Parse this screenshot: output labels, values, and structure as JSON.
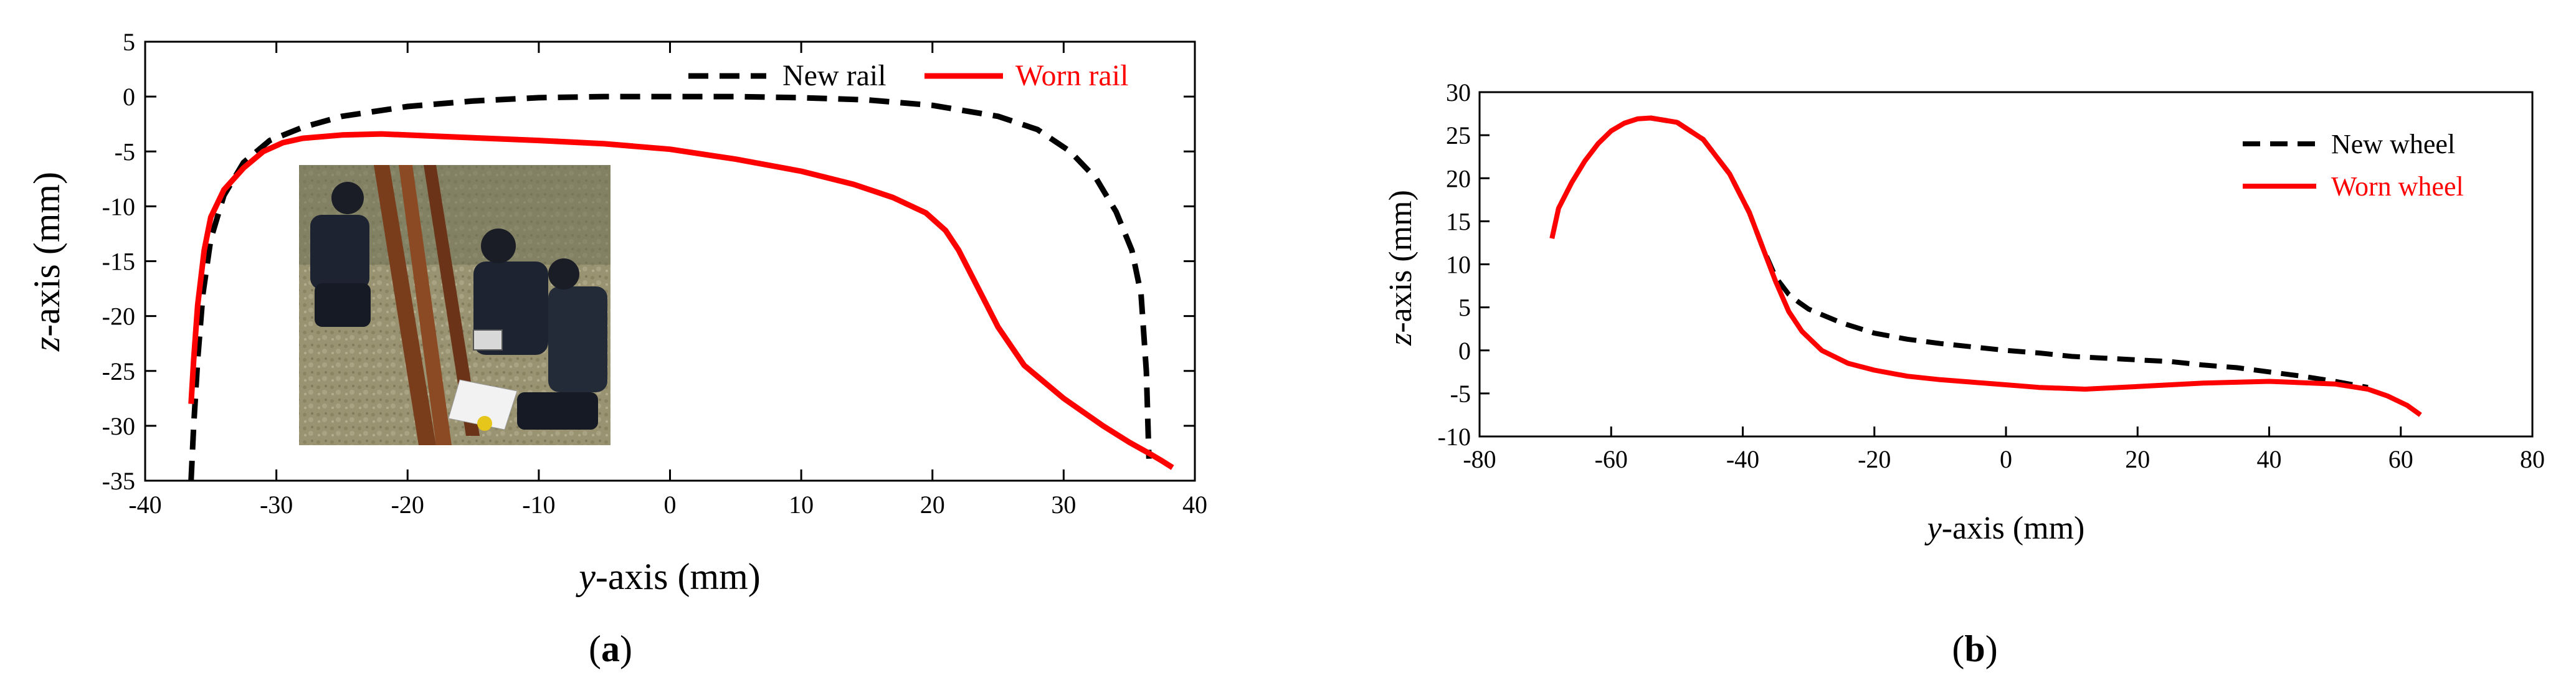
{
  "chart_data": [
    {
      "panel": "a",
      "type": "line",
      "panel_label": {
        "open": "(",
        "letter": "a",
        "close": ")"
      },
      "xaxis_label": {
        "italic": "y",
        "rest": "-axis (mm)"
      },
      "yaxis_label": {
        "italic": "z",
        "rest": "-axis (mm)"
      },
      "xlim": [
        -40,
        40
      ],
      "ylim": [
        -35,
        5
      ],
      "xticks": [
        -40,
        -30,
        -20,
        -10,
        0,
        10,
        20,
        30,
        40
      ],
      "yticks": [
        5,
        0,
        -5,
        -10,
        -15,
        -20,
        -25,
        -30,
        -35
      ],
      "legend_position": "top-right",
      "inset_photo": "photo of workers measuring rail profile",
      "series": [
        {
          "name": "New rail",
          "style": "dashed",
          "color": "#000000",
          "x": [
            -36.5,
            -36.3,
            -36.0,
            -35.6,
            -35.0,
            -34.0,
            -32.5,
            -30.5,
            -28.0,
            -25.0,
            -20.0,
            -15.0,
            -10.0,
            -5.0,
            0.0,
            5.0,
            10.0,
            15.0,
            20.0,
            25.0,
            28.0,
            30.5,
            32.5,
            34.0,
            35.2,
            35.9,
            36.3,
            36.5
          ],
          "y": [
            -35.0,
            -30.0,
            -24.0,
            -18.0,
            -13.0,
            -9.0,
            -6.0,
            -4.0,
            -2.8,
            -1.8,
            -0.9,
            -0.4,
            -0.1,
            0.0,
            0.0,
            0.0,
            -0.1,
            -0.3,
            -0.8,
            -1.8,
            -3.0,
            -5.0,
            -7.5,
            -10.5,
            -14.0,
            -18.0,
            -25.0,
            -33.0
          ]
        },
        {
          "name": "Worn rail",
          "style": "solid",
          "color": "#ff0000",
          "x": [
            -36.5,
            -36.3,
            -36.0,
            -35.5,
            -35.0,
            -34.0,
            -32.5,
            -31.0,
            -29.5,
            -28.0,
            -25.0,
            -22.0,
            -18.0,
            -14.0,
            -10.0,
            -5.0,
            0.0,
            5.0,
            10.0,
            14.0,
            17.0,
            19.5,
            21.0,
            22.0,
            23.5,
            25.0,
            27.0,
            30.0,
            33.0,
            35.0,
            36.5,
            37.5,
            38.3
          ],
          "y": [
            -28.0,
            -24.0,
            -19.0,
            -14.0,
            -11.0,
            -8.5,
            -6.5,
            -5.0,
            -4.2,
            -3.8,
            -3.5,
            -3.4,
            -3.6,
            -3.8,
            -4.0,
            -4.3,
            -4.8,
            -5.7,
            -6.8,
            -8.0,
            -9.2,
            -10.6,
            -12.2,
            -14.0,
            -17.5,
            -21.0,
            -24.5,
            -27.5,
            -30.0,
            -31.5,
            -32.5,
            -33.2,
            -33.8
          ]
        }
      ]
    },
    {
      "panel": "b",
      "type": "line",
      "panel_label": {
        "open": "(",
        "letter": "b",
        "close": ")"
      },
      "xaxis_label": {
        "italic": "y",
        "rest": "-axis (mm)"
      },
      "yaxis_label": {
        "italic": "z",
        "rest": "-axis (mm)"
      },
      "xlim": [
        -80,
        80
      ],
      "ylim": [
        -10,
        30
      ],
      "xticks": [
        -80,
        -60,
        -40,
        -20,
        0,
        20,
        40,
        60,
        80
      ],
      "yticks": [
        30,
        25,
        20,
        15,
        10,
        5,
        0,
        -5,
        -10
      ],
      "legend_position": "top-right",
      "series": [
        {
          "name": "New wheel",
          "style": "dashed",
          "color": "#000000",
          "x": [
            -54.0,
            -50.0,
            -46.0,
            -42.0,
            -39.0,
            -37.0,
            -35.0,
            -33.0,
            -31.5,
            -30.0,
            -25.0,
            -20.0,
            -15.0,
            -10.0,
            -5.0,
            0.0,
            5.0,
            10.0,
            15.0,
            20.0,
            25.0,
            30.0,
            35.0,
            40.0,
            45.0,
            50.0,
            55.0
          ],
          "y": [
            27.0,
            26.5,
            24.5,
            20.5,
            16.0,
            12.0,
            8.5,
            6.5,
            5.6,
            4.8,
            3.2,
            2.0,
            1.3,
            0.8,
            0.4,
            0.0,
            -0.3,
            -0.7,
            -0.9,
            -1.1,
            -1.3,
            -1.7,
            -2.0,
            -2.5,
            -3.0,
            -3.6,
            -4.3
          ]
        },
        {
          "name": "Worn wheel",
          "style": "solid",
          "color": "#ff0000",
          "x": [
            -69.0,
            -68.0,
            -66.0,
            -64.0,
            -62.0,
            -60.0,
            -58.0,
            -56.0,
            -54.0,
            -50.0,
            -46.0,
            -42.0,
            -39.0,
            -37.0,
            -35.0,
            -33.0,
            -31.0,
            -28.0,
            -24.0,
            -20.0,
            -15.0,
            -10.0,
            -5.0,
            0.0,
            5.0,
            12.0,
            20.0,
            30.0,
            40.0,
            50.0,
            55.0,
            58.0,
            61.0,
            63.0
          ],
          "y": [
            13.0,
            16.5,
            19.5,
            22.0,
            24.0,
            25.5,
            26.4,
            26.9,
            27.0,
            26.5,
            24.5,
            20.5,
            16.0,
            12.0,
            8.0,
            4.5,
            2.2,
            0.0,
            -1.5,
            -2.3,
            -3.0,
            -3.4,
            -3.7,
            -4.0,
            -4.3,
            -4.5,
            -4.2,
            -3.8,
            -3.6,
            -3.9,
            -4.5,
            -5.3,
            -6.4,
            -7.5
          ]
        }
      ]
    }
  ]
}
